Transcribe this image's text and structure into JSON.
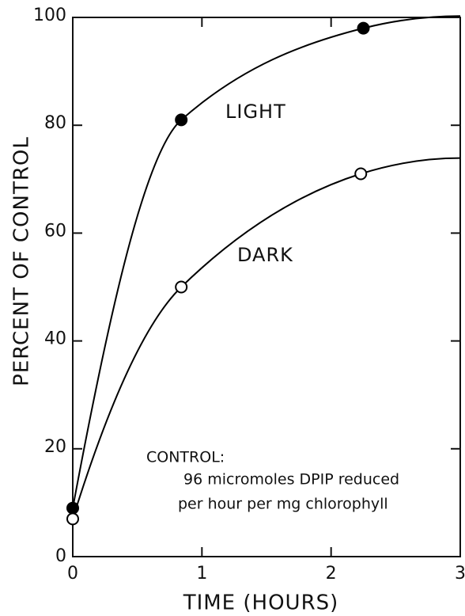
{
  "chart_data": {
    "type": "line",
    "xlabel": "TIME (HOURS)",
    "ylabel": "PERCENT OF CONTROL",
    "xlim": [
      0,
      3
    ],
    "xticks": [
      0,
      1,
      2,
      3
    ],
    "ylim": [
      0,
      100
    ],
    "yticks": [
      0,
      20,
      40,
      60,
      80,
      100
    ],
    "series": [
      {
        "name": "LIGHT",
        "color": "#000000",
        "marker_fill": "#000000",
        "x": [
          0,
          0.84,
          2.25
        ],
        "values": [
          9,
          81,
          98
        ]
      },
      {
        "name": "DARK",
        "color": "#000000",
        "marker_fill": "#ffffff",
        "x": [
          0,
          0.84,
          2.23
        ],
        "values": [
          7,
          50,
          71
        ]
      }
    ],
    "annotation": [
      "CONTROL:",
      "96 micromoles DPIP reduced",
      "per hour per mg chlorophyll"
    ]
  }
}
